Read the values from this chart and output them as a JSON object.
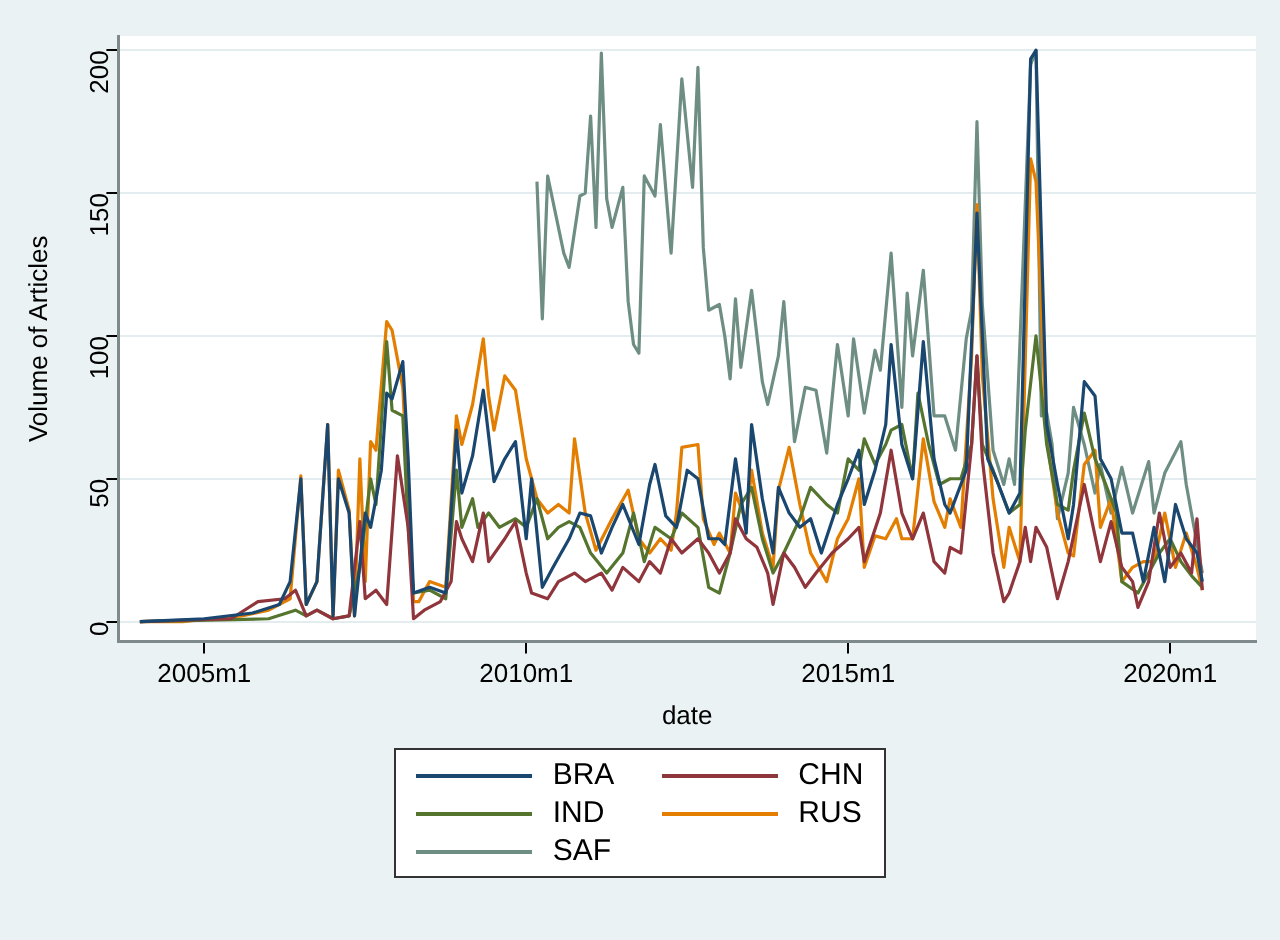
{
  "chart_data": {
    "type": "line",
    "xlabel": "date",
    "ylabel": "Volume of Articles",
    "xlim": [
      "2003-09",
      "2021-05"
    ],
    "ylim": [
      -7,
      205
    ],
    "xticks": [
      {
        "value": "2005-01",
        "label": "2005m1"
      },
      {
        "value": "2010-01",
        "label": "2010m1"
      },
      {
        "value": "2015-01",
        "label": "2015m1"
      },
      {
        "value": "2020-01",
        "label": "2020m1"
      }
    ],
    "yticks": [
      0,
      50,
      100,
      150,
      200
    ],
    "grid": "y",
    "legend": "bottom",
    "series": [
      {
        "name": "BRA",
        "color": "#1a476f",
        "x": [
          "2004-01",
          "2005-01",
          "2005-10",
          "2006-03",
          "2006-05",
          "2006-07",
          "2006-08",
          "2006-10",
          "2006-12",
          "2007-01",
          "2007-02",
          "2007-04",
          "2007-05",
          "2007-07",
          "2007-08",
          "2007-10",
          "2007-11",
          "2007-12",
          "2008-02",
          "2008-03",
          "2008-04",
          "2008-07",
          "2008-10",
          "2008-12",
          "2009-01",
          "2009-03",
          "2009-05",
          "2009-07",
          "2009-09",
          "2009-11",
          "2010-01",
          "2010-02",
          "2010-04",
          "2010-06",
          "2010-09",
          "2010-11",
          "2011-01",
          "2011-03",
          "2011-05",
          "2011-07",
          "2011-10",
          "2011-12",
          "2012-01",
          "2012-03",
          "2012-05",
          "2012-07",
          "2012-09",
          "2012-11",
          "2013-01",
          "2013-02",
          "2013-04",
          "2013-06",
          "2013-07",
          "2013-09",
          "2013-11",
          "2013-12",
          "2014-02",
          "2014-04",
          "2014-06",
          "2014-08",
          "2014-11",
          "2015-01",
          "2015-03",
          "2015-04",
          "2015-06",
          "2015-08",
          "2015-09",
          "2015-11",
          "2016-01",
          "2016-03",
          "2016-05",
          "2016-07",
          "2016-08",
          "2016-11",
          "2017-01",
          "2017-03",
          "2017-05",
          "2017-07",
          "2017-09",
          "2017-11",
          "2017-12",
          "2018-02",
          "2018-04",
          "2018-06",
          "2018-07",
          "2018-09",
          "2018-11",
          "2018-12",
          "2019-02",
          "2019-04",
          "2019-06",
          "2019-08",
          "2019-10",
          "2019-12",
          "2020-02",
          "2020-04",
          "2020-06",
          "2020-07"
        ],
        "values": [
          0,
          1,
          3,
          6,
          14,
          50,
          6,
          14,
          69,
          2,
          50,
          38,
          2,
          38,
          33,
          53,
          80,
          78,
          91,
          57,
          10,
          12,
          10,
          67,
          45,
          58,
          81,
          49,
          57,
          63,
          29,
          50,
          12,
          19,
          29,
          38,
          37,
          24,
          33,
          41,
          27,
          48,
          55,
          37,
          33,
          53,
          50,
          29,
          29,
          27,
          57,
          31,
          69,
          43,
          24,
          47,
          38,
          33,
          36,
          24,
          41,
          50,
          60,
          41,
          53,
          69,
          97,
          62,
          50,
          98,
          57,
          41,
          38,
          53,
          143,
          57,
          48,
          38,
          45,
          197,
          200,
          69,
          48,
          29,
          41,
          84,
          79,
          57,
          50,
          31,
          31,
          14,
          33,
          14,
          41,
          29,
          24,
          14
        ]
      },
      {
        "name": "CHN",
        "color": "#90353b",
        "x": [
          "2004-01",
          "2005-06",
          "2005-11",
          "2006-04",
          "2006-06",
          "2006-08",
          "2006-10",
          "2007-01",
          "2007-04",
          "2007-06",
          "2007-07",
          "2007-09",
          "2007-11",
          "2008-01",
          "2008-03",
          "2008-04",
          "2008-06",
          "2008-09",
          "2008-11",
          "2008-12",
          "2009-01",
          "2009-03",
          "2009-05",
          "2009-06",
          "2009-09",
          "2009-11",
          "2010-01",
          "2010-02",
          "2010-05",
          "2010-07",
          "2010-10",
          "2010-12",
          "2011-03",
          "2011-05",
          "2011-07",
          "2011-10",
          "2011-12",
          "2012-02",
          "2012-04",
          "2012-06",
          "2012-09",
          "2012-11",
          "2013-01",
          "2013-03",
          "2013-04",
          "2013-06",
          "2013-08",
          "2013-10",
          "2013-11",
          "2014-01",
          "2014-03",
          "2014-05",
          "2014-07",
          "2014-10",
          "2015-01",
          "2015-03",
          "2015-04",
          "2015-07",
          "2015-09",
          "2015-11",
          "2016-01",
          "2016-03",
          "2016-05",
          "2016-07",
          "2016-08",
          "2016-10",
          "2016-12",
          "2017-01",
          "2017-02",
          "2017-04",
          "2017-06",
          "2017-07",
          "2017-09",
          "2017-10",
          "2017-11",
          "2017-12",
          "2018-02",
          "2018-04",
          "2018-06",
          "2018-09",
          "2018-12",
          "2019-02",
          "2019-04",
          "2019-06",
          "2019-07",
          "2019-09",
          "2019-11",
          "2020-01",
          "2020-03",
          "2020-05",
          "2020-06",
          "2020-07"
        ],
        "values": [
          0,
          1,
          7,
          8,
          11,
          2,
          4,
          1,
          2,
          35,
          8,
          11,
          6,
          58,
          33,
          1,
          4,
          7,
          14,
          35,
          29,
          21,
          38,
          21,
          29,
          35,
          17,
          10,
          8,
          14,
          17,
          14,
          17,
          11,
          19,
          14,
          21,
          17,
          29,
          24,
          29,
          24,
          17,
          24,
          36,
          29,
          26,
          17,
          6,
          24,
          19,
          12,
          17,
          24,
          29,
          33,
          21,
          38,
          60,
          38,
          29,
          38,
          21,
          17,
          26,
          24,
          62,
          93,
          57,
          24,
          7,
          10,
          21,
          33,
          21,
          33,
          26,
          8,
          21,
          48,
          21,
          35,
          19,
          14,
          5,
          14,
          38,
          19,
          24,
          17,
          36,
          11
        ]
      },
      {
        "name": "IND",
        "color": "#55752f",
        "x": [
          "2004-01",
          "2006-01",
          "2006-06",
          "2006-08",
          "2006-10",
          "2007-01",
          "2007-04",
          "2007-06",
          "2007-08",
          "2007-09",
          "2007-11",
          "2007-12",
          "2008-02",
          "2008-03",
          "2008-04",
          "2008-07",
          "2008-10",
          "2008-12",
          "2009-01",
          "2009-03",
          "2009-04",
          "2009-06",
          "2009-08",
          "2009-11",
          "2010-01",
          "2010-03",
          "2010-05",
          "2010-07",
          "2010-09",
          "2010-11",
          "2011-01",
          "2011-04",
          "2011-07",
          "2011-09",
          "2011-11",
          "2012-01",
          "2012-04",
          "2012-06",
          "2012-09",
          "2012-11",
          "2013-01",
          "2013-03",
          "2013-05",
          "2013-07",
          "2013-09",
          "2013-11",
          "2014-01",
          "2014-04",
          "2014-06",
          "2014-09",
          "2014-11",
          "2015-01",
          "2015-03",
          "2015-04",
          "2015-06",
          "2015-08",
          "2015-09",
          "2015-11",
          "2016-01",
          "2016-02",
          "2016-04",
          "2016-06",
          "2016-08",
          "2016-10",
          "2016-12",
          "2017-01",
          "2017-02",
          "2017-04",
          "2017-06",
          "2017-07",
          "2017-09",
          "2017-10",
          "2017-12",
          "2018-02",
          "2018-04",
          "2018-06",
          "2018-07",
          "2018-09",
          "2018-11",
          "2019-01",
          "2019-03",
          "2019-04",
          "2019-07",
          "2019-09",
          "2019-11",
          "2020-01",
          "2020-03",
          "2020-05",
          "2020-07"
        ],
        "values": [
          0,
          1,
          4,
          2,
          4,
          1,
          2,
          19,
          50,
          41,
          98,
          74,
          72,
          33,
          10,
          11,
          8,
          53,
          33,
          43,
          33,
          38,
          33,
          36,
          33,
          43,
          29,
          33,
          35,
          33,
          24,
          17,
          24,
          38,
          21,
          33,
          29,
          38,
          33,
          12,
          10,
          24,
          41,
          47,
          29,
          17,
          24,
          36,
          47,
          41,
          38,
          57,
          53,
          64,
          55,
          62,
          67,
          69,
          50,
          80,
          62,
          48,
          50,
          50,
          62,
          93,
          62,
          53,
          43,
          38,
          41,
          67,
          100,
          62,
          41,
          39,
          53,
          73,
          57,
          48,
          38,
          14,
          10,
          17,
          24,
          29,
          21,
          16,
          12
        ]
      },
      {
        "name": "RUS",
        "color": "#e37e00",
        "x": [
          "2004-01",
          "2004-09",
          "2005-02",
          "2005-08",
          "2006-01",
          "2006-05",
          "2006-07",
          "2006-08",
          "2006-10",
          "2006-12",
          "2007-01",
          "2007-02",
          "2007-04",
          "2007-05",
          "2007-06",
          "2007-07",
          "2007-08",
          "2007-09",
          "2007-11",
          "2007-12",
          "2008-02",
          "2008-04",
          "2008-05",
          "2008-07",
          "2008-10",
          "2008-12",
          "2009-01",
          "2009-03",
          "2009-05",
          "2009-06",
          "2009-07",
          "2009-09",
          "2009-11",
          "2010-01",
          "2010-03",
          "2010-05",
          "2010-07",
          "2010-09",
          "2010-10",
          "2010-12",
          "2011-02",
          "2011-05",
          "2011-08",
          "2011-10",
          "2011-12",
          "2012-02",
          "2012-04",
          "2012-05",
          "2012-06",
          "2012-09",
          "2012-10",
          "2012-12",
          "2013-01",
          "2013-03",
          "2013-04",
          "2013-06",
          "2013-07",
          "2013-09",
          "2013-11",
          "2013-12",
          "2014-02",
          "2014-04",
          "2014-06",
          "2014-09",
          "2014-11",
          "2015-01",
          "2015-03",
          "2015-04",
          "2015-06",
          "2015-08",
          "2015-10",
          "2015-11",
          "2016-01",
          "2016-03",
          "2016-05",
          "2016-07",
          "2016-08",
          "2016-10",
          "2016-12",
          "2017-01",
          "2017-02",
          "2017-04",
          "2017-06",
          "2017-07",
          "2017-09",
          "2017-11",
          "2017-12",
          "2018-02",
          "2018-04",
          "2018-06",
          "2018-07",
          "2018-09",
          "2018-11",
          "2018-12",
          "2019-02",
          "2019-04",
          "2019-06",
          "2019-08",
          "2019-10",
          "2019-12",
          "2020-02",
          "2020-04",
          "2020-06",
          "2020-07"
        ],
        "values": [
          0,
          0,
          1,
          2,
          4,
          8,
          51,
          6,
          14,
          69,
          1,
          53,
          39,
          2,
          57,
          14,
          63,
          60,
          105,
          102,
          82,
          7,
          7,
          14,
          12,
          72,
          62,
          76,
          99,
          79,
          67,
          86,
          81,
          57,
          43,
          38,
          41,
          38,
          64,
          38,
          25,
          36,
          46,
          29,
          24,
          29,
          25,
          38,
          61,
          62,
          36,
          27,
          31,
          24,
          45,
          35,
          53,
          31,
          19,
          46,
          61,
          41,
          24,
          14,
          29,
          36,
          50,
          19,
          30,
          29,
          36,
          29,
          29,
          64,
          42,
          33,
          43,
          33,
          93,
          146,
          86,
          43,
          19,
          33,
          21,
          162,
          154,
          64,
          38,
          24,
          23,
          55,
          60,
          33,
          43,
          14,
          19,
          21,
          21,
          38,
          19,
          31,
          19,
          11
        ]
      },
      {
        "name": "SAF",
        "color": "#6e8e84",
        "x": [
          "2010-03",
          "2010-04",
          "2010-05",
          "2010-08",
          "2010-09",
          "2010-11",
          "2010-12",
          "2011-01",
          "2011-02",
          "2011-03",
          "2011-04",
          "2011-05",
          "2011-07",
          "2011-08",
          "2011-09",
          "2011-10",
          "2011-11",
          "2012-01",
          "2012-02",
          "2012-04",
          "2012-06",
          "2012-08",
          "2012-09",
          "2012-10",
          "2012-11",
          "2013-01",
          "2013-02",
          "2013-03",
          "2013-04",
          "2013-05",
          "2013-07",
          "2013-09",
          "2013-10",
          "2013-12",
          "2014-01",
          "2014-03",
          "2014-05",
          "2014-07",
          "2014-09",
          "2014-11",
          "2015-01",
          "2015-02",
          "2015-04",
          "2015-06",
          "2015-07",
          "2015-09",
          "2015-11",
          "2015-12",
          "2016-01",
          "2016-03",
          "2016-05",
          "2016-07",
          "2016-09",
          "2016-11",
          "2016-12",
          "2017-01",
          "2017-02",
          "2017-04",
          "2017-06",
          "2017-07",
          "2017-08",
          "2017-11",
          "2017-12",
          "2018-01",
          "2018-02",
          "2018-03",
          "2018-04",
          "2018-06",
          "2018-07",
          "2018-09",
          "2018-11",
          "2018-12",
          "2019-02",
          "2019-04",
          "2019-06",
          "2019-09",
          "2019-10",
          "2019-12",
          "2020-03",
          "2020-04",
          "2020-07"
        ],
        "values": [
          154,
          106,
          156,
          129,
          124,
          149,
          150,
          177,
          138,
          199,
          148,
          138,
          152,
          112,
          97,
          94,
          156,
          149,
          174,
          129,
          190,
          152,
          194,
          131,
          109,
          111,
          100,
          85,
          113,
          89,
          116,
          84,
          76,
          93,
          112,
          63,
          82,
          81,
          59,
          97,
          72,
          99,
          73,
          95,
          88,
          129,
          75,
          115,
          93,
          123,
          72,
          72,
          60,
          99,
          109,
          175,
          111,
          60,
          48,
          57,
          48,
          195,
          200,
          72,
          73,
          62,
          36,
          52,
          75,
          62,
          45,
          55,
          38,
          54,
          38,
          56,
          38,
          52,
          63,
          48,
          17
        ]
      }
    ]
  }
}
